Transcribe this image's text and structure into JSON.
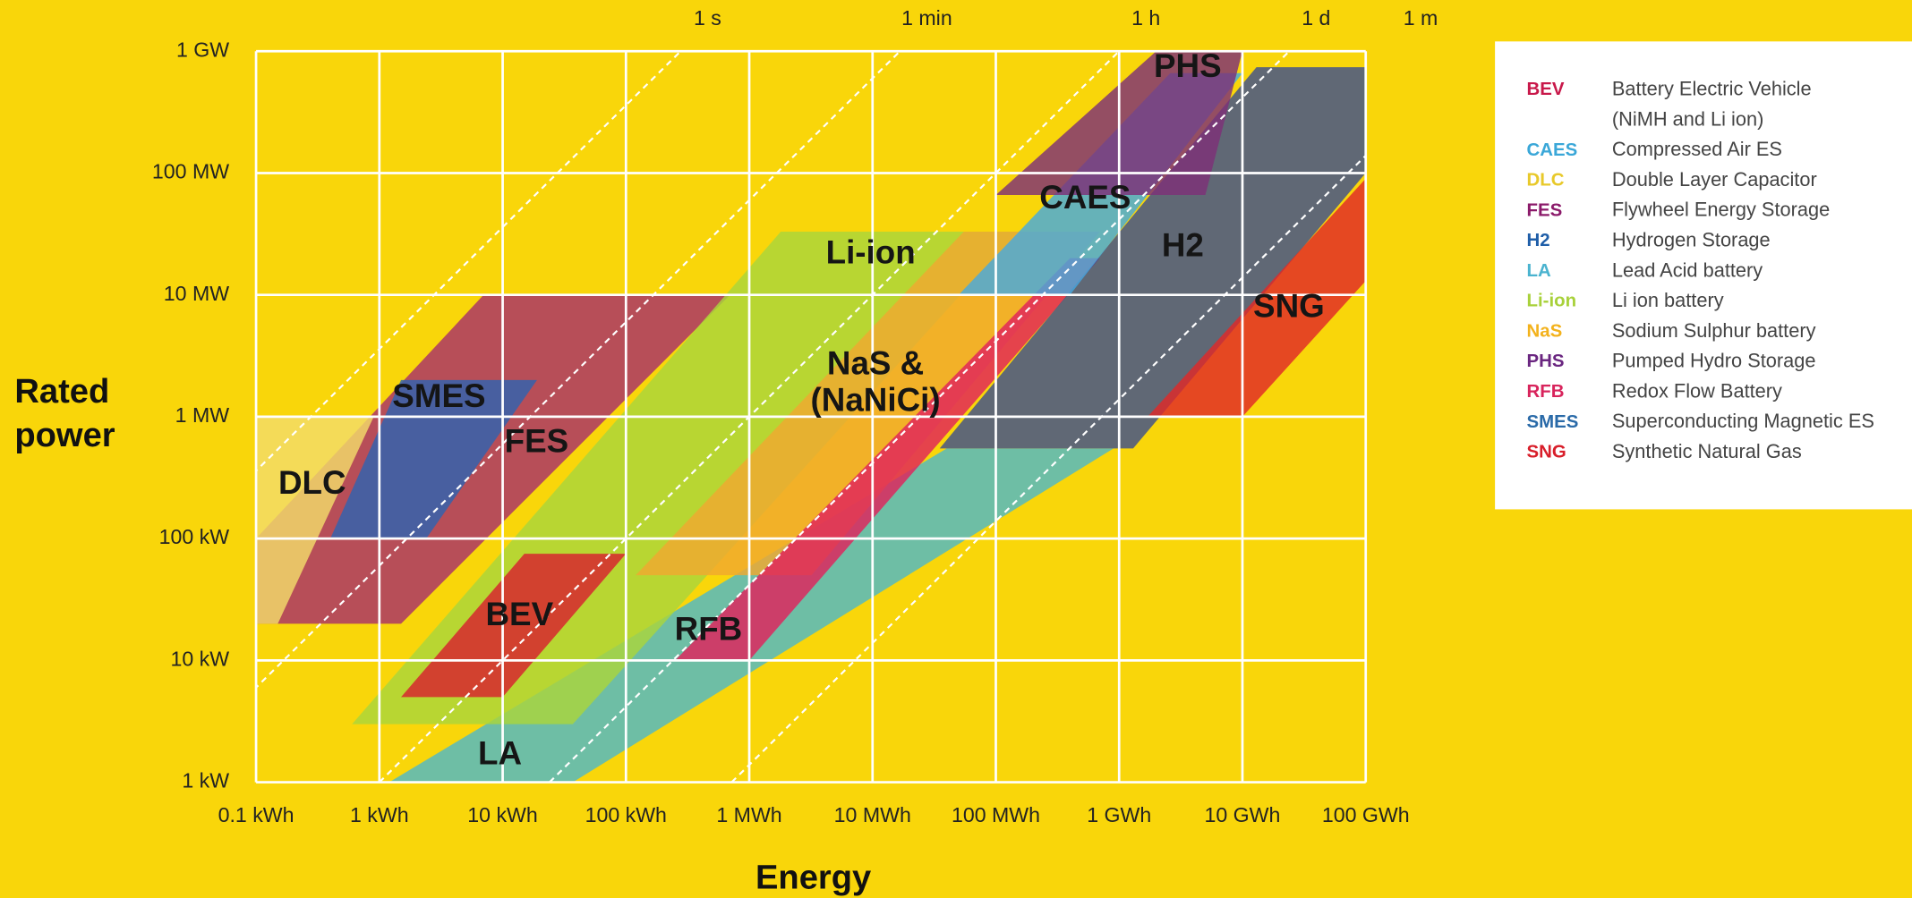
{
  "chart_data": {
    "type": "region",
    "x_label": "Energy",
    "y_label": [
      "Rated",
      "power"
    ],
    "log_x": true,
    "log_y": true,
    "grid": true,
    "xlim": [
      0.1,
      100000000
    ],
    "ylim": [
      1,
      1000000
    ],
    "xticks": [
      {
        "value": 0.1,
        "label": "0.1 kWh"
      },
      {
        "value": 1,
        "label": "1 kWh"
      },
      {
        "value": 10,
        "label": "10 kWh"
      },
      {
        "value": 100,
        "label": "100 kWh"
      },
      {
        "value": 1000,
        "label": "1 MWh"
      },
      {
        "value": 10000,
        "label": "10 MWh"
      },
      {
        "value": 100000,
        "label": "100 MWh"
      },
      {
        "value": 1000000,
        "label": "1 GWh"
      },
      {
        "value": 10000000,
        "label": "10 GWh"
      },
      {
        "value": 100000000,
        "label": "100 GWh"
      }
    ],
    "yticks": [
      {
        "value": 1,
        "label": "1 kW"
      },
      {
        "value": 10,
        "label": "10 kW"
      },
      {
        "value": 100,
        "label": "100 kW"
      },
      {
        "value": 1000,
        "label": "1 MW"
      },
      {
        "value": 10000,
        "label": "10 MW"
      },
      {
        "value": 100000,
        "label": "100 MW"
      },
      {
        "value": 1000000,
        "label": "1 GW"
      }
    ],
    "time_lines": [
      {
        "value": 0.000278,
        "label": "1 s"
      },
      {
        "value": 0.0167,
        "label": "1 min"
      },
      {
        "value": 1,
        "label": "1 h"
      },
      {
        "value": 24,
        "label": "1 d"
      },
      {
        "value": 720,
        "label": "1 m"
      }
    ],
    "series": [
      {
        "name": "FES",
        "color": "#a8306a",
        "x": [
          0.1,
          7,
          700,
          1.5,
          0.1
        ],
        "values": [
          100,
          10000,
          10000,
          20,
          20
        ]
      },
      {
        "name": "DLC",
        "color": "#f3dc6a",
        "x": [
          0.1,
          0.9,
          0.15,
          0.1
        ],
        "values": [
          1000,
          1000,
          20,
          20
        ]
      },
      {
        "name": "SMES",
        "color": "#2f63b0",
        "x": [
          0.4,
          1.5,
          19,
          2.4
        ],
        "values": [
          100,
          2000,
          2000,
          100
        ]
      },
      {
        "name": "LA",
        "color": "#4fb8c8",
        "x": [
          1.2,
          37,
          900000,
          40000
        ],
        "values": [
          1,
          1,
          550,
          550
        ]
      },
      {
        "name": "Li-ion",
        "color": "#a9d63c",
        "x": [
          0.6,
          1800,
          150000,
          37
        ],
        "values": [
          3,
          33000,
          33000,
          3
        ]
      },
      {
        "name": "BEV",
        "color": "#d8202e",
        "x": [
          1.5,
          15,
          100,
          10
        ],
        "values": [
          5,
          75,
          75,
          5
        ]
      },
      {
        "name": [
          "NaS &",
          "(NaNiCi)"
        ],
        "color": "#f0a830",
        "x": [
          120,
          3200,
          700000,
          55000
        ],
        "values": [
          50,
          50,
          33000,
          33000
        ]
      },
      {
        "name": "RFB",
        "color": "#e0225c",
        "x": [
          250,
          1000,
          700000,
          400000
        ],
        "values": [
          10,
          10,
          20000,
          20000
        ]
      },
      {
        "name": "H2",
        "color": "#3e4f8e",
        "x": [
          35000,
          13000000,
          100000000,
          100000000,
          1300000
        ],
        "values": [
          550,
          740000,
          740000,
          100000,
          550
        ]
      },
      {
        "name": "CAES",
        "color": "#46aadf",
        "x": [
          50000,
          2600000,
          10000000,
          400000
        ],
        "values": [
          10000,
          660000,
          660000,
          10000
        ]
      },
      {
        "name": "SNG",
        "color": "#e02828",
        "x": [
          1700000,
          100000000,
          100000000,
          10000000
        ],
        "values": [
          1000,
          90000,
          13000,
          1000
        ]
      },
      {
        "name": "PHS",
        "color": "#7e2f78",
        "x": [
          100000,
          2000000,
          10000000,
          5000000
        ],
        "values": [
          66000,
          1000000,
          1000000,
          66000
        ]
      }
    ]
  },
  "legend": [
    {
      "abbr": "BEV",
      "color": "#c8184a",
      "text": [
        "Battery Electric Vehicle",
        "(NiMH and Li ion)"
      ]
    },
    {
      "abbr": "CAES",
      "color": "#3aa7d8",
      "text": [
        "Compressed Air ES"
      ]
    },
    {
      "abbr": "DLC",
      "color": "#e8c92a",
      "text": [
        "Double Layer Capacitor"
      ]
    },
    {
      "abbr": "FES",
      "color": "#8b1a6a",
      "text": [
        "Flywheel Energy Storage"
      ]
    },
    {
      "abbr": "H2",
      "color": "#1f5ea8",
      "text": [
        "Hydrogen Storage"
      ]
    },
    {
      "abbr": "LA",
      "color": "#4ab3cf",
      "text": [
        "Lead Acid battery"
      ]
    },
    {
      "abbr": "Li-ion",
      "color": "#a8d13a",
      "text": [
        "Li ion battery"
      ]
    },
    {
      "abbr": "NaS",
      "color": "#f3b21c",
      "text": [
        "Sodium Sulphur battery"
      ]
    },
    {
      "abbr": "PHS",
      "color": "#6a2680",
      "text": [
        "Pumped Hydro Storage"
      ]
    },
    {
      "abbr": "RFB",
      "color": "#d8245c",
      "text": [
        "Redox Flow Battery"
      ]
    },
    {
      "abbr": "SMES",
      "color": "#2a6aa8",
      "text": [
        "Superconducting Magnetic ES"
      ]
    },
    {
      "abbr": "SNG",
      "color": "#d81e2a",
      "text": [
        "Synthetic Natural Gas"
      ]
    }
  ]
}
